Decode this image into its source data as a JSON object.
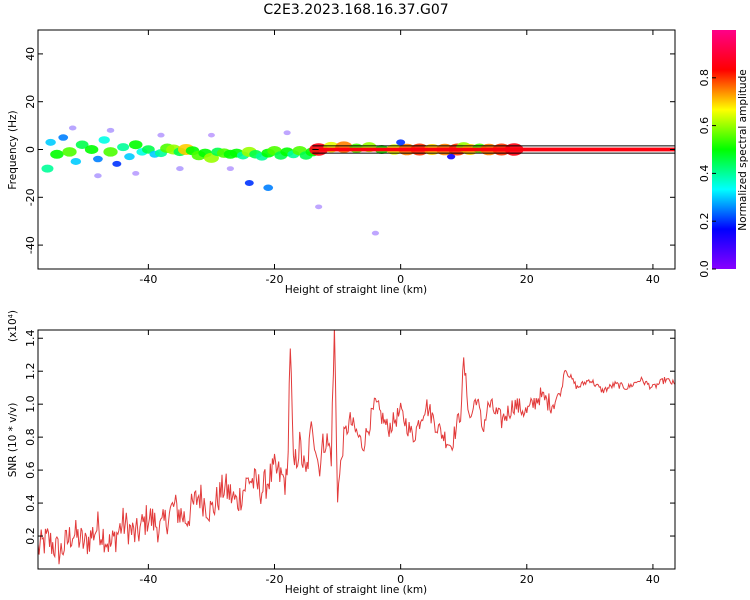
{
  "figure": {
    "title": "C2E3.2023.168.16.37.G07"
  },
  "chart_data": [
    {
      "type": "heatmap",
      "xlabel": "Height of straight line (km)",
      "ylabel": "Frequency (Hz)",
      "xlim": [
        -57.5,
        43.5
      ],
      "ylim": [
        -50,
        50
      ],
      "xticks": [
        -40,
        -20,
        0,
        20,
        40
      ],
      "yticks": [
        -40,
        -20,
        0,
        20,
        40
      ],
      "grid": false,
      "colorbar": {
        "label": "Normalized spectral amplitude",
        "range": [
          0,
          1
        ],
        "ticks": [
          0.0,
          0.2,
          0.4,
          0.6,
          0.8
        ],
        "colormap": [
          "#8800ff",
          "#0000ff",
          "#00ffff",
          "#00ff00",
          "#ffff00",
          "#ff0000",
          "#ff0088"
        ]
      },
      "reference_lines_hz": [
        -1.5,
        0,
        1.5
      ],
      "blobs": [
        {
          "x": -56.0,
          "y": -8.0,
          "v": 0.4
        },
        {
          "x": -55.5,
          "y": 3.0,
          "v": 0.3
        },
        {
          "x": -54.5,
          "y": -2.0,
          "v": 0.5
        },
        {
          "x": -53.5,
          "y": 5.0,
          "v": 0.25
        },
        {
          "x": -52.5,
          "y": -1.0,
          "v": 0.55
        },
        {
          "x": -51.5,
          "y": -5.0,
          "v": 0.3
        },
        {
          "x": -50.5,
          "y": 2.0,
          "v": 0.45
        },
        {
          "x": -49.0,
          "y": 0.0,
          "v": 0.5
        },
        {
          "x": -48.0,
          "y": -4.0,
          "v": 0.25
        },
        {
          "x": -47.0,
          "y": 4.0,
          "v": 0.35
        },
        {
          "x": -46.0,
          "y": -1.0,
          "v": 0.55
        },
        {
          "x": -45.0,
          "y": -6.0,
          "v": 0.2
        },
        {
          "x": -44.0,
          "y": 1.0,
          "v": 0.4
        },
        {
          "x": -43.0,
          "y": -3.0,
          "v": 0.3
        },
        {
          "x": -42.0,
          "y": 2.0,
          "v": 0.5
        },
        {
          "x": -41.0,
          "y": -1.0,
          "v": 0.35
        },
        {
          "x": -40.0,
          "y": 0.0,
          "v": 0.45
        },
        {
          "x": -39.0,
          "y": -2.0,
          "v": 0.3
        },
        {
          "x": -38.0,
          "y": -1.5,
          "v": 0.4
        },
        {
          "x": -37.0,
          "y": 0.5,
          "v": 0.55
        },
        {
          "x": -36.0,
          "y": 0.0,
          "v": 0.6
        },
        {
          "x": -35.0,
          "y": -1.0,
          "v": 0.45
        },
        {
          "x": -34.0,
          "y": 0.0,
          "v": 0.7
        },
        {
          "x": -33.0,
          "y": -0.5,
          "v": 0.5
        },
        {
          "x": -32.0,
          "y": -2.5,
          "v": 0.55
        },
        {
          "x": -31.0,
          "y": -1.5,
          "v": 0.5
        },
        {
          "x": -30.0,
          "y": -3.5,
          "v": 0.6
        },
        {
          "x": -29.0,
          "y": -1.0,
          "v": 0.45
        },
        {
          "x": -28.0,
          "y": -1.5,
          "v": 0.55
        },
        {
          "x": -27.0,
          "y": -2.0,
          "v": 0.5
        },
        {
          "x": -26.0,
          "y": -1.5,
          "v": 0.5
        },
        {
          "x": -25.0,
          "y": -2.5,
          "v": 0.4
        },
        {
          "x": -24.0,
          "y": -1.0,
          "v": 0.6
        },
        {
          "x": -23.0,
          "y": -2.0,
          "v": 0.45
        },
        {
          "x": -22.0,
          "y": -3.0,
          "v": 0.4
        },
        {
          "x": -21.0,
          "y": -1.5,
          "v": 0.5
        },
        {
          "x": -20.0,
          "y": -0.5,
          "v": 0.55
        },
        {
          "x": -19.0,
          "y": -2.5,
          "v": 0.45
        },
        {
          "x": -18.0,
          "y": -1.0,
          "v": 0.5
        },
        {
          "x": -17.0,
          "y": -2.0,
          "v": 0.4
        },
        {
          "x": -16.0,
          "y": -0.5,
          "v": 0.55
        },
        {
          "x": -15.0,
          "y": -2.5,
          "v": 0.45
        },
        {
          "x": -14.0,
          "y": -1.0,
          "v": 0.5
        },
        {
          "x": -13.0,
          "y": 0.0,
          "v": 0.85
        },
        {
          "x": -11.0,
          "y": 1.0,
          "v": 0.65
        },
        {
          "x": -9.0,
          "y": 1.0,
          "v": 0.75
        },
        {
          "x": -7.0,
          "y": 0.5,
          "v": 0.55
        },
        {
          "x": -5.0,
          "y": 1.0,
          "v": 0.6
        },
        {
          "x": -3.0,
          "y": 0.0,
          "v": 0.5
        },
        {
          "x": -1.0,
          "y": 0.0,
          "v": 0.65
        },
        {
          "x": 1.0,
          "y": 0.0,
          "v": 0.75
        },
        {
          "x": 3.0,
          "y": 0.0,
          "v": 0.8
        },
        {
          "x": 5.0,
          "y": 0.0,
          "v": 0.7
        },
        {
          "x": 7.0,
          "y": 0.0,
          "v": 0.75
        },
        {
          "x": 9.0,
          "y": 0.0,
          "v": 0.8
        },
        {
          "x": 10.0,
          "y": 1.0,
          "v": 0.6
        },
        {
          "x": 11.0,
          "y": 0.0,
          "v": 0.7
        },
        {
          "x": 12.5,
          "y": 0.5,
          "v": 0.55
        },
        {
          "x": 14.0,
          "y": 0.0,
          "v": 0.75
        },
        {
          "x": 16.0,
          "y": 0.0,
          "v": 0.8
        },
        {
          "x": 18.0,
          "y": 0.0,
          "v": 0.85
        },
        {
          "x": -52.0,
          "y": 9.0,
          "v": 0.1
        },
        {
          "x": -48.0,
          "y": -11.0,
          "v": 0.1
        },
        {
          "x": -46.0,
          "y": 8.0,
          "v": 0.1
        },
        {
          "x": -42.0,
          "y": -10.0,
          "v": 0.08
        },
        {
          "x": -38.0,
          "y": 6.0,
          "v": 0.08
        },
        {
          "x": -35.0,
          "y": -8.0,
          "v": 0.1
        },
        {
          "x": -30.0,
          "y": 6.0,
          "v": 0.06
        },
        {
          "x": -27.0,
          "y": -8.0,
          "v": 0.08
        },
        {
          "x": -24.0,
          "y": -14.0,
          "v": 0.2
        },
        {
          "x": -21.0,
          "y": -16.0,
          "v": 0.25
        },
        {
          "x": -18.0,
          "y": 7.0,
          "v": 0.08
        },
        {
          "x": -13.0,
          "y": -24.0,
          "v": 0.08
        },
        {
          "x": -4.0,
          "y": -35.0,
          "v": 0.08
        },
        {
          "x": 0.0,
          "y": 3.0,
          "v": 0.2
        },
        {
          "x": 8.0,
          "y": -3.0,
          "v": 0.15
        }
      ]
    },
    {
      "type": "line",
      "xlabel": "Height of straight line (km)",
      "ylabel": "SNR (10 * v/v)",
      "y_multiplier": "(x10⁴)",
      "xlim": [
        -57.5,
        43.5
      ],
      "ylim": [
        0,
        1.45
      ],
      "xticks": [
        -40,
        -20,
        0,
        20,
        40
      ],
      "yticks": [
        0.2,
        0.4,
        0.6,
        0.8,
        1.0,
        1.2,
        1.4
      ],
      "color": "#e23b3b",
      "grid": false,
      "series": [
        {
          "x": [
            -57.5,
            -56,
            -54,
            -52,
            -50,
            -48,
            -46,
            -44,
            -42,
            -40,
            -38,
            -36,
            -34,
            -32,
            -30,
            -28,
            -26,
            -24,
            -22,
            -20,
            -18,
            -17.5,
            -17,
            -16,
            -15,
            -14,
            -13,
            -12,
            -11,
            -10.5,
            -10,
            -9,
            -8,
            -6,
            -4,
            -2,
            0,
            2,
            4,
            6,
            8,
            9.5,
            10,
            11,
            12,
            13,
            14,
            16,
            18,
            20,
            22,
            24,
            25.5,
            26,
            28,
            30,
            32,
            34,
            36,
            38,
            40,
            42,
            43.5
          ],
          "y": [
            0.12,
            0.18,
            0.1,
            0.22,
            0.15,
            0.26,
            0.14,
            0.28,
            0.2,
            0.32,
            0.24,
            0.38,
            0.3,
            0.45,
            0.35,
            0.5,
            0.4,
            0.55,
            0.48,
            0.6,
            0.52,
            1.38,
            0.6,
            0.75,
            0.55,
            0.9,
            0.62,
            0.8,
            0.7,
            1.44,
            0.45,
            0.8,
            0.9,
            0.75,
            1.0,
            0.85,
            0.95,
            0.8,
            1.0,
            0.85,
            0.75,
            0.95,
            1.25,
            0.9,
            1.05,
            0.85,
            1.0,
            0.9,
            1.0,
            0.95,
            1.05,
            1.0,
            1.08,
            1.22,
            1.1,
            1.15,
            1.08,
            1.12,
            1.1,
            1.15,
            1.1,
            1.15,
            1.12
          ]
        }
      ]
    }
  ]
}
